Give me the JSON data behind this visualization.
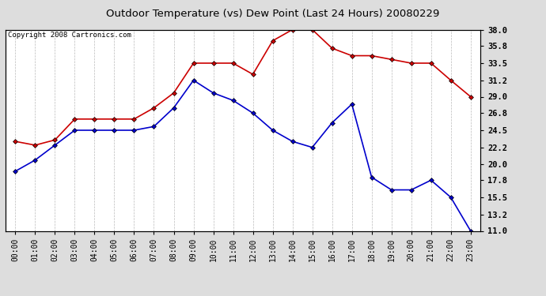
{
  "title": "Outdoor Temperature (vs) Dew Point (Last 24 Hours) 20080229",
  "copyright": "Copyright 2008 Cartronics.com",
  "hours": [
    "00:00",
    "01:00",
    "02:00",
    "03:00",
    "04:00",
    "05:00",
    "06:00",
    "07:00",
    "08:00",
    "09:00",
    "10:00",
    "11:00",
    "12:00",
    "13:00",
    "14:00",
    "15:00",
    "16:00",
    "17:00",
    "18:00",
    "19:00",
    "20:00",
    "21:00",
    "22:00",
    "23:00"
  ],
  "temp": [
    23.0,
    22.5,
    23.2,
    26.0,
    26.0,
    26.0,
    26.0,
    27.5,
    29.5,
    33.5,
    33.5,
    33.5,
    32.0,
    36.5,
    38.0,
    38.0,
    35.5,
    34.5,
    34.5,
    34.0,
    33.5,
    33.5,
    31.2,
    29.0
  ],
  "dewpoint": [
    19.0,
    20.5,
    22.5,
    24.5,
    24.5,
    24.5,
    24.5,
    25.0,
    27.5,
    31.2,
    29.5,
    28.5,
    26.8,
    24.5,
    23.0,
    22.2,
    25.5,
    28.0,
    18.2,
    16.5,
    16.5,
    17.8,
    15.5,
    11.0
  ],
  "temp_color": "#cc0000",
  "dew_color": "#0000cc",
  "bg_color": "#dddddd",
  "plot_bg": "#ffffff",
  "grid_color": "#aaaaaa",
  "ylim_min": 11.0,
  "ylim_max": 38.0,
  "yticks": [
    11.0,
    13.2,
    15.5,
    17.8,
    20.0,
    22.2,
    24.5,
    26.8,
    29.0,
    31.2,
    33.5,
    35.8,
    38.0
  ],
  "marker": "D",
  "marker_size": 3,
  "linewidth": 1.2
}
